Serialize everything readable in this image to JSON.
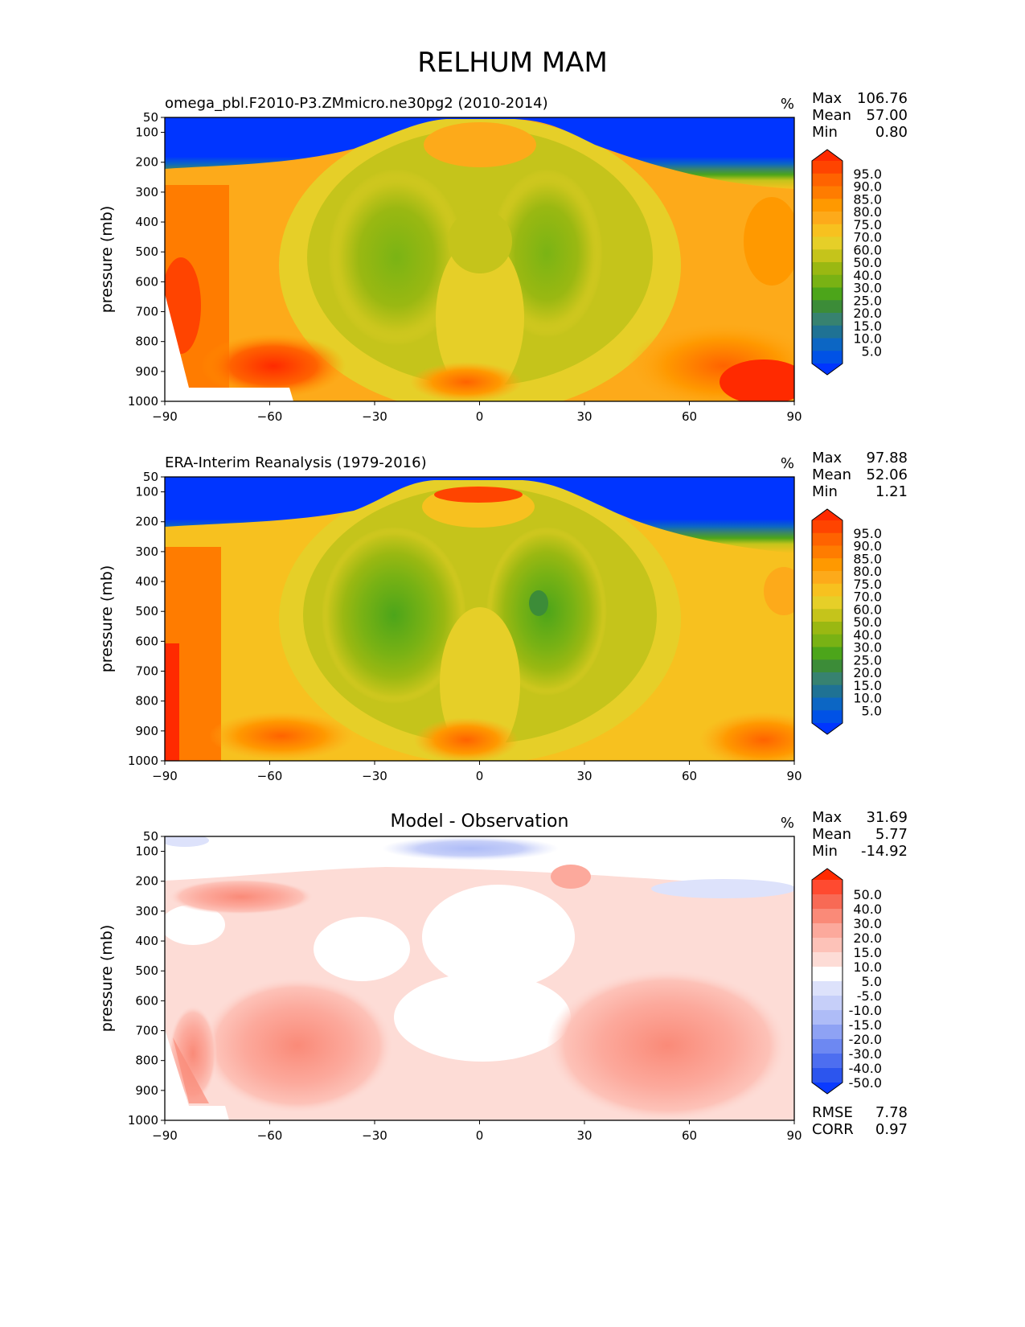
{
  "title": "RELHUM MAM",
  "chart_data": [
    {
      "type": "heatmap",
      "panel": "test",
      "title": "omega_pbl.F2010-P3.ZMmicro.ne30pg2 (2010-2014)",
      "center_title": "",
      "units": "%",
      "ylabel": "pressure (mb)",
      "xlabel": "",
      "xlim": [
        -90,
        90
      ],
      "ylim": [
        1000,
        50
      ],
      "xticks": [
        "−90",
        "−60",
        "−30",
        "0",
        "30",
        "60",
        "90"
      ],
      "yticks": [
        "50",
        "100",
        "200",
        "300",
        "400",
        "500",
        "600",
        "700",
        "800",
        "900",
        "1000"
      ],
      "stats": [
        {
          "label": "Max",
          "value": "106.76"
        },
        {
          "label": "Mean",
          "value": "57.00"
        },
        {
          "label": "Min",
          "value": "0.80"
        }
      ],
      "colorbar": {
        "labels": [
          "95.0",
          "90.0",
          "85.0",
          "80.0",
          "75.0",
          "70.0",
          "60.0",
          "50.0",
          "40.0",
          "30.0",
          "25.0",
          "20.0",
          "15.0",
          "10.0",
          "5.0"
        ],
        "colors": [
          "#ff2a00",
          "#ff4400",
          "#ff6300",
          "#ff7c00",
          "#ff9900",
          "#fdaa1a",
          "#f7c11f",
          "#e6cf28",
          "#c5c41b",
          "#9ab812",
          "#79b214",
          "#4ca51a",
          "#3c8c38",
          "#378270",
          "#1f7294",
          "#0c66c4",
          "#0052e6",
          "#0035ff"
        ]
      },
      "extra_stats": []
    },
    {
      "type": "heatmap",
      "panel": "reference",
      "title": "ERA-Interim Reanalysis (1979-2016)",
      "center_title": "",
      "units": "%",
      "ylabel": "pressure (mb)",
      "xlabel": "",
      "xlim": [
        -90,
        90
      ],
      "ylim": [
        1000,
        50
      ],
      "xticks": [
        "−90",
        "−60",
        "−30",
        "0",
        "30",
        "60",
        "90"
      ],
      "yticks": [
        "50",
        "100",
        "200",
        "300",
        "400",
        "500",
        "600",
        "700",
        "800",
        "900",
        "1000"
      ],
      "stats": [
        {
          "label": "Max",
          "value": "97.88"
        },
        {
          "label": "Mean",
          "value": "52.06"
        },
        {
          "label": "Min",
          "value": "1.21"
        }
      ],
      "colorbar": {
        "labels": [
          "95.0",
          "90.0",
          "85.0",
          "80.0",
          "75.0",
          "70.0",
          "60.0",
          "50.0",
          "40.0",
          "30.0",
          "25.0",
          "20.0",
          "15.0",
          "10.0",
          "5.0"
        ],
        "colors": [
          "#ff2a00",
          "#ff4400",
          "#ff6300",
          "#ff7c00",
          "#ff9900",
          "#fdaa1a",
          "#f7c11f",
          "#e6cf28",
          "#c5c41b",
          "#9ab812",
          "#79b214",
          "#4ca51a",
          "#3c8c38",
          "#378270",
          "#1f7294",
          "#0c66c4",
          "#0052e6",
          "#0035ff"
        ]
      },
      "extra_stats": []
    },
    {
      "type": "heatmap",
      "panel": "difference",
      "title": "",
      "center_title": "Model - Observation",
      "units": "%",
      "ylabel": "pressure (mb)",
      "xlabel": "",
      "xlim": [
        -90,
        90
      ],
      "ylim": [
        1000,
        50
      ],
      "xticks": [
        "−90",
        "−60",
        "−30",
        "0",
        "30",
        "60",
        "90"
      ],
      "yticks": [
        "50",
        "100",
        "200",
        "300",
        "400",
        "500",
        "600",
        "700",
        "800",
        "900",
        "1000"
      ],
      "stats": [
        {
          "label": "Max",
          "value": "31.69"
        },
        {
          "label": "Mean",
          "value": "5.77"
        },
        {
          "label": "Min",
          "value": "-14.92"
        }
      ],
      "colorbar": {
        "labels": [
          "50.0",
          "40.0",
          "30.0",
          "20.0",
          "15.0",
          "10.0",
          "5.0",
          "-5.0",
          "-10.0",
          "-15.0",
          "-20.0",
          "-30.0",
          "-40.0",
          "-50.0"
        ],
        "colors": [
          "#ff2a00",
          "#ff4a30",
          "#f86a55",
          "#fa8a78",
          "#fca99c",
          "#fdc2b8",
          "#fddcd6",
          "#ffffff",
          "#dde2fb",
          "#c6cff9",
          "#aebcf7",
          "#8ea2f4",
          "#6d88f2",
          "#4d6ef0",
          "#2c55ee",
          "#0a3aff"
        ]
      },
      "extra_stats": [
        {
          "label": "RMSE",
          "value": "7.78"
        },
        {
          "label": "CORR",
          "value": "0.97"
        }
      ]
    }
  ]
}
